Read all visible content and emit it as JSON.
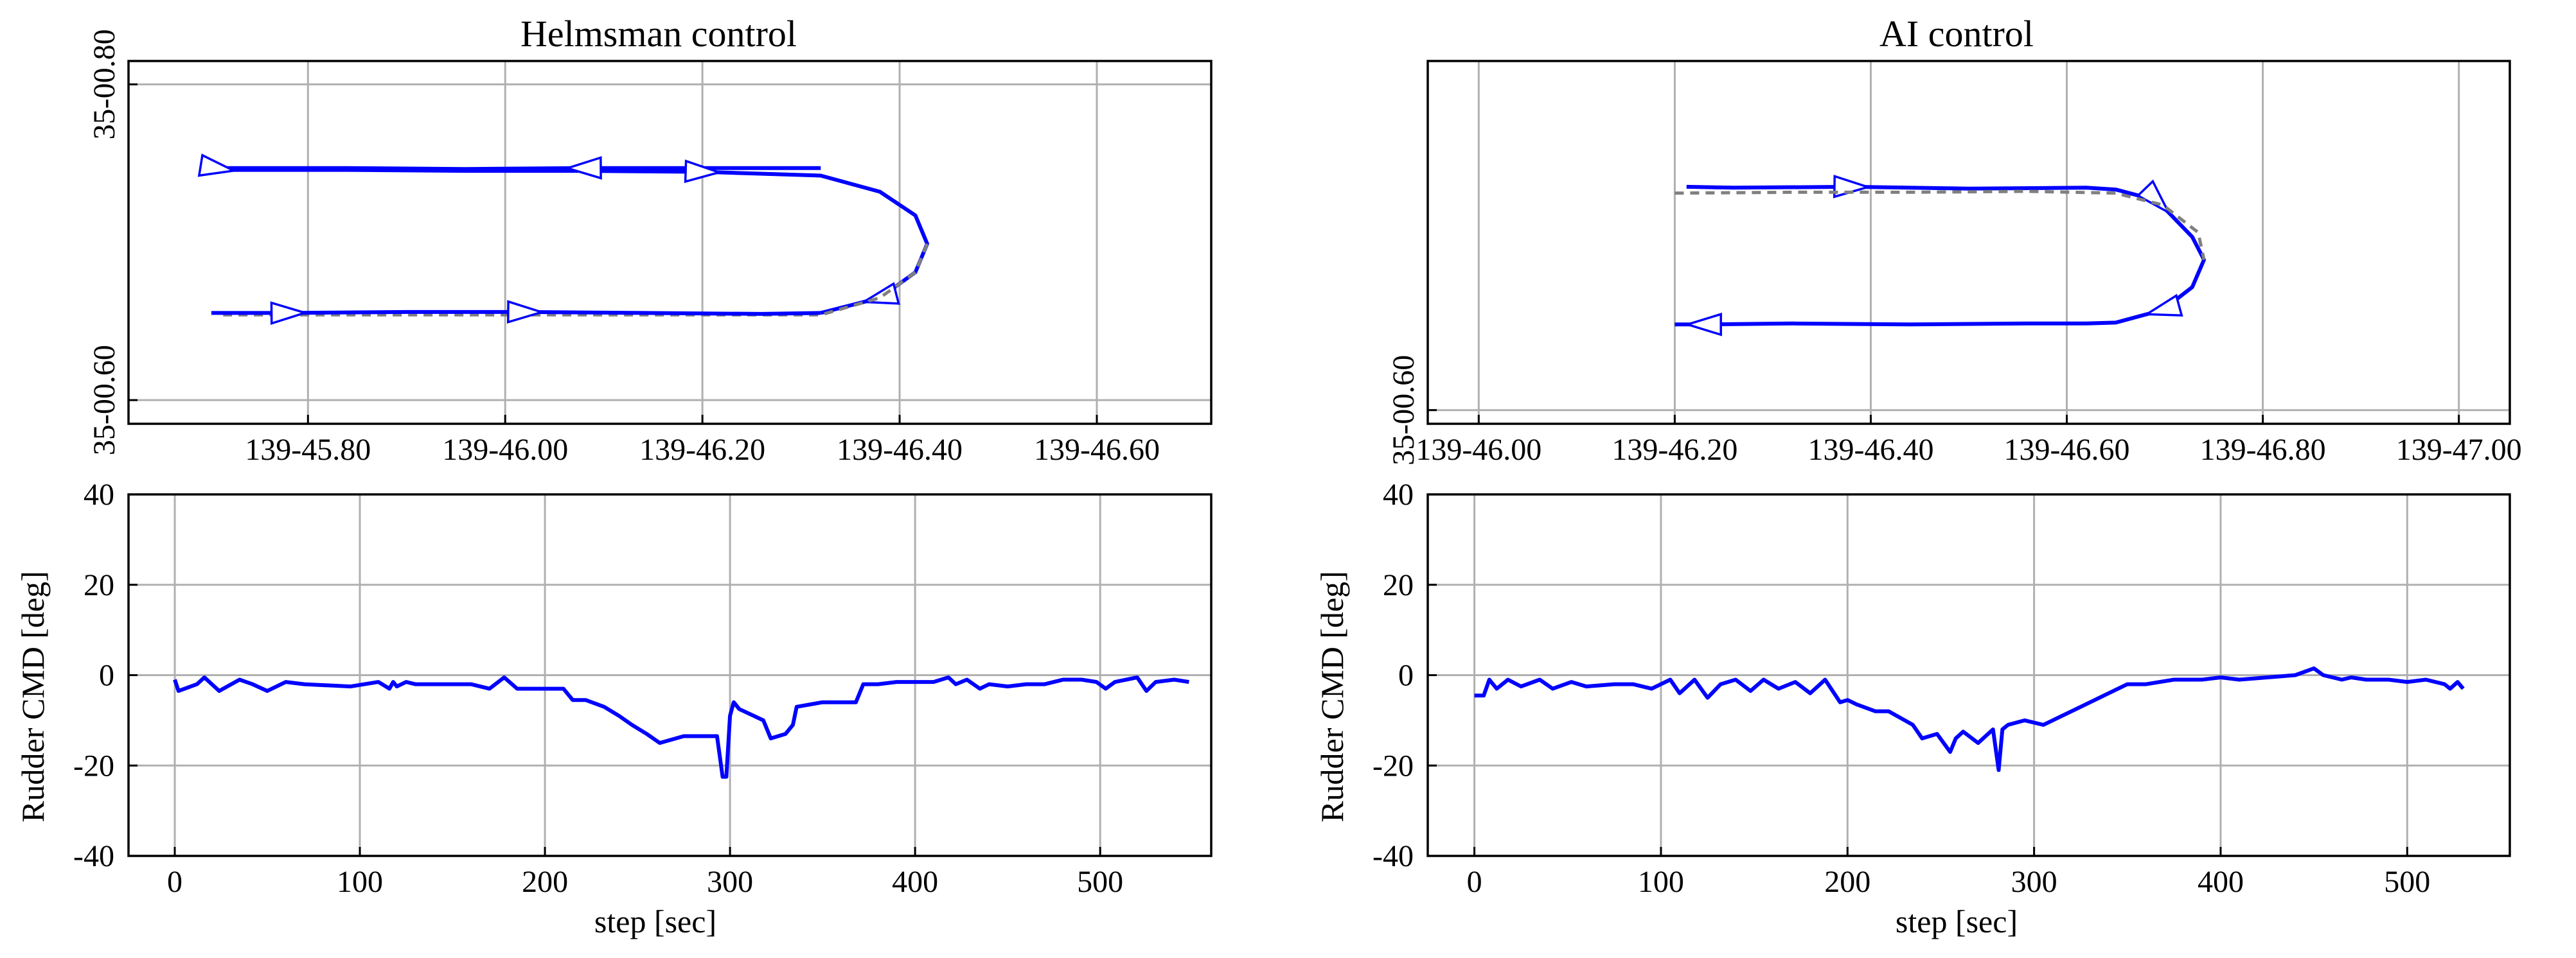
{
  "colors": {
    "track": "#0000ff",
    "reference": "#808080",
    "grid": "#b0b0b0",
    "frame": "#000000"
  },
  "chart_data": [
    {
      "type": "line",
      "title": "Helmsman control",
      "xlabel": "",
      "ylabel": "",
      "xlim": [
        139.7603,
        139.7786
      ],
      "ylim": [
        35.00975,
        35.01358
      ],
      "xticks": [
        "139-45.80",
        "139-46.00",
        "139-46.20",
        "139-46.40",
        "139-46.60"
      ],
      "yticks": [
        "35-00.60",
        "35-00.80"
      ],
      "grid": true,
      "arrow_markers": true,
      "series": [
        {
          "line": "solid",
          "color": "blue",
          "x": [
            139.772,
            139.77,
            139.768,
            139.766,
            139.764,
            139.7625,
            139.7618,
            139.762,
            139.764,
            139.766,
            139.768,
            139.77,
            139.772,
            139.773,
            139.7736,
            139.7738,
            139.7736,
            139.773,
            139.772
          ],
          "y": [
            35.01245,
            35.01245,
            35.01245,
            35.01244,
            35.01245,
            35.01245,
            35.01245,
            35.01243,
            35.01243,
            35.01242,
            35.01242,
            35.01241,
            35.01237,
            35.0122,
            35.01195,
            35.01165,
            35.01135,
            35.01108,
            35.01092
          ]
        },
        {
          "line": "dashed",
          "color": "gray",
          "x": [
            139.7738,
            139.7736,
            139.773,
            139.772,
            139.77,
            139.768,
            139.766,
            139.764,
            139.7625,
            139.7619
          ],
          "y": [
            35.01165,
            35.01135,
            35.01108,
            35.0109,
            35.0109,
            35.0109,
            35.0109,
            35.0109,
            35.0109,
            35.0109
          ]
        },
        {
          "line": "solid",
          "color": "blue",
          "x": [
            139.7617,
            139.763,
            139.765,
            139.767,
            139.769,
            139.771,
            139.772
          ],
          "y": [
            35.01092,
            35.01092,
            35.01093,
            35.01093,
            35.01092,
            35.01091,
            35.01092
          ]
        }
      ]
    },
    {
      "type": "line",
      "title": "AI control",
      "xlabel": "",
      "ylabel": "",
      "xlim": [
        139.7658,
        139.7842
      ],
      "ylim": [
        35.00985,
        35.01383
      ],
      "xticks": [
        "139-46.00",
        "139-46.20",
        "139-46.40",
        "139-46.60",
        "139-46.80",
        "139-47.00"
      ],
      "yticks": [
        "35-00.60"
      ],
      "grid": true,
      "arrow_markers": true,
      "series": [
        {
          "line": "solid",
          "color": "blue",
          "x": [
            139.7702,
            139.771,
            139.773,
            139.775,
            139.777,
            139.7775,
            139.7782,
            139.7785,
            139.7788,
            139.779,
            139.7788,
            139.7783,
            139.7775,
            139.777,
            139.776,
            139.774,
            139.772,
            139.7705,
            139.77
          ],
          "y": [
            35.01245,
            35.01244,
            35.01245,
            35.01243,
            35.01244,
            35.01242,
            35.0123,
            35.0121,
            35.0119,
            35.01165,
            35.01135,
            35.0111,
            35.01096,
            35.01095,
            35.01095,
            35.01094,
            35.01095,
            35.01094,
            35.01094
          ]
        },
        {
          "line": "dashed",
          "color": "gray",
          "x": [
            139.77,
            139.772,
            139.774,
            139.776,
            139.7775,
            139.7783,
            139.7789,
            139.779
          ],
          "y": [
            35.01238,
            35.01239,
            35.01239,
            35.0124,
            35.01238,
            35.01225,
            35.01195,
            35.01165
          ]
        }
      ]
    },
    {
      "type": "line",
      "title": "",
      "xlabel": "step [sec]",
      "ylabel": "Rudder CMD [deg]",
      "xlim": [
        -25,
        560
      ],
      "ylim": [
        -40,
        40
      ],
      "xticks": [
        0,
        100,
        200,
        300,
        400,
        500
      ],
      "yticks": [
        -40,
        -20,
        0,
        20,
        40
      ],
      "grid": true,
      "series": [
        {
          "color": "blue",
          "x": [
            0,
            2,
            12,
            16,
            24,
            35,
            42,
            50,
            60,
            70,
            95,
            110,
            116,
            118,
            120,
            125,
            130,
            145,
            160,
            170,
            178,
            185,
            200,
            210,
            215,
            222,
            232,
            240,
            247,
            255,
            262,
            275,
            285,
            293,
            296,
            298,
            300,
            302,
            305,
            318,
            322,
            330,
            334,
            336,
            350,
            360,
            368,
            372,
            380,
            390,
            400,
            410,
            418,
            422,
            428,
            435,
            440,
            450,
            460,
            470,
            480,
            490,
            498,
            503,
            508,
            520,
            525,
            530,
            540,
            548
          ],
          "y": [
            -1,
            -3.5,
            -2,
            -0.5,
            -3.5,
            -1,
            -2,
            -3.5,
            -1.5,
            -2,
            -2.5,
            -1.5,
            -3,
            -1.5,
            -2.5,
            -1.5,
            -2,
            -2,
            -2,
            -3,
            -0.5,
            -3,
            -3,
            -3,
            -5.5,
            -5.5,
            -7,
            -9,
            -11,
            -13,
            -15,
            -13.5,
            -13.5,
            -13.5,
            -22.5,
            -22.5,
            -9,
            -6,
            -7.5,
            -10,
            -14,
            -13,
            -11,
            -7,
            -6,
            -6,
            -6,
            -2,
            -2,
            -1.5,
            -1.5,
            -1.5,
            -0.5,
            -2,
            -1,
            -3,
            -2,
            -2.5,
            -2,
            -2,
            -1,
            -1,
            -1.5,
            -3,
            -1.5,
            -0.5,
            -3.5,
            -1.5,
            -1,
            -1.5
          ]
        }
      ]
    },
    {
      "type": "line",
      "title": "",
      "xlabel": "step [sec]",
      "ylabel": "Rudder CMD [deg]",
      "xlim": [
        -25,
        555
      ],
      "ylim": [
        -40,
        40
      ],
      "xticks": [
        0,
        100,
        200,
        300,
        400,
        500
      ],
      "yticks": [
        -40,
        -20,
        0,
        20,
        40
      ],
      "grid": true,
      "series": [
        {
          "color": "blue",
          "x": [
            0,
            5,
            8,
            12,
            18,
            25,
            35,
            42,
            52,
            60,
            75,
            85,
            95,
            105,
            110,
            118,
            125,
            132,
            140,
            148,
            155,
            163,
            172,
            180,
            188,
            196,
            200,
            205,
            215,
            222,
            235,
            240,
            248,
            255,
            258,
            262,
            270,
            278,
            281,
            283,
            286,
            295,
            305,
            315,
            325,
            335,
            345,
            350,
            360,
            375,
            390,
            400,
            410,
            425,
            440,
            450,
            455,
            465,
            470,
            478,
            490,
            500,
            510,
            520,
            523,
            527,
            530
          ],
          "y": [
            -4.5,
            -4.5,
            -1,
            -3,
            -1,
            -2.5,
            -1,
            -3,
            -1.5,
            -2.5,
            -2,
            -2,
            -3,
            -1,
            -4,
            -1,
            -5,
            -2,
            -1,
            -3.5,
            -1,
            -3,
            -1.5,
            -4,
            -1,
            -6,
            -5.5,
            -6.5,
            -8,
            -8,
            -11,
            -14,
            -13,
            -17,
            -14,
            -12.5,
            -15,
            -12,
            -21,
            -12,
            -11,
            -10,
            -11,
            -9,
            -7,
            -5,
            -3,
            -2,
            -2,
            -1,
            -1,
            -0.5,
            -1,
            -0.5,
            0,
            1.5,
            0,
            -1,
            -0.5,
            -1,
            -1,
            -1.5,
            -1,
            -2,
            -3,
            -1.5,
            -3
          ]
        }
      ]
    }
  ]
}
